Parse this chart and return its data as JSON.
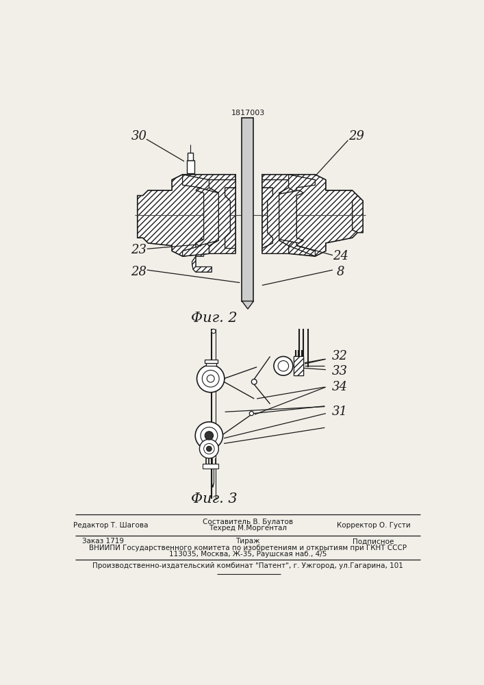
{
  "patent_number": "1817003",
  "fig2_caption": "Φиг. 2",
  "fig3_caption": "Φиг. 3",
  "bg_color": "#f2efe9",
  "line_color": "#1a1a1a",
  "label_color": "#111111",
  "footer_line1_left": "Редактор Т. Шагова",
  "footer_line1_center1": "Составитель В. Булатов",
  "footer_line1_center2": "Техред М.Моргентал",
  "footer_line1_right": "Корректор О. Густи",
  "footer_line2_left": "Заказ 1719",
  "footer_line2_center": "Тираж",
  "footer_line2_right": "Подписное",
  "footer_line3": "ВНИИПИ Государственного комитета по изобретениям и открытиям при ГКНТ СССР",
  "footer_line4": "113035, Москва, Ж-35, Раушская наб., 4/5",
  "footer_line5": "Производственно-издательский комбинат \"Патент\", г. Ужгород, ул.Гагарина, 101"
}
